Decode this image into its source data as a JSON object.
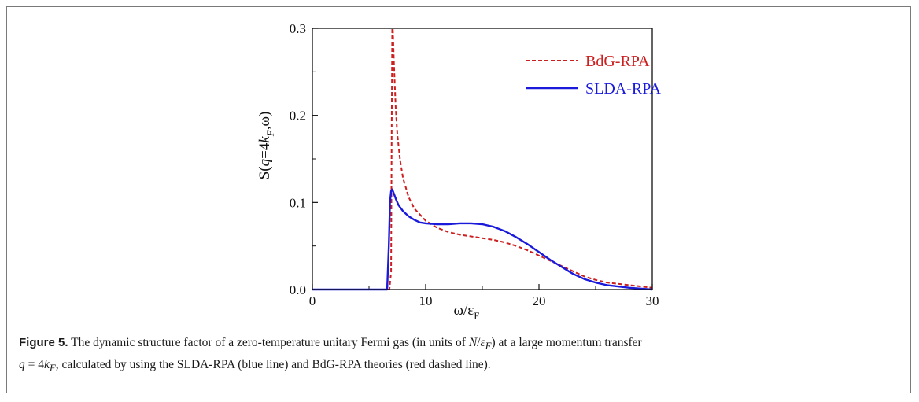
{
  "colors": {
    "bdg": "#cc1f1f",
    "slda": "#1a1adb",
    "axis": "#111111"
  },
  "chart_data": {
    "type": "line",
    "xlabel_main": "ω/ε",
    "xlabel_sub": "F",
    "ylabel_parts": [
      "S(",
      "q",
      "=4",
      "k",
      "F",
      ",ω)"
    ],
    "xlim": [
      0,
      30
    ],
    "ylim": [
      0,
      0.3
    ],
    "x_ticks": [
      0,
      10,
      20,
      30
    ],
    "x_tick_labels": [
      "0",
      "10",
      "20",
      "30"
    ],
    "y_ticks": [
      0.0,
      0.1,
      0.2,
      0.3
    ],
    "y_tick_labels": [
      "0.0",
      "0.1",
      "0.2",
      "0.3"
    ],
    "legend_position": "top-right",
    "series": [
      {
        "name": "BdG-RPA",
        "style": "dashed",
        "color": "#cc1f1f",
        "x": [
          0,
          6.8,
          6.95,
          7.0,
          7.05,
          7.1,
          7.2,
          7.35,
          7.5,
          7.75,
          8.0,
          8.5,
          9.0,
          10.0,
          11.0,
          12.0,
          13.0,
          14.0,
          15.0,
          16.0,
          17.0,
          18.0,
          19.0,
          20.0,
          21.0,
          22.0,
          23.0,
          24.0,
          25.0,
          26.0,
          28.0,
          30.0
        ],
        "y": [
          0.0,
          0.0,
          0.02,
          0.18,
          0.3,
          0.3,
          0.26,
          0.21,
          0.178,
          0.148,
          0.128,
          0.106,
          0.093,
          0.079,
          0.071,
          0.066,
          0.063,
          0.061,
          0.059,
          0.057,
          0.054,
          0.05,
          0.045,
          0.039,
          0.033,
          0.027,
          0.021,
          0.015,
          0.011,
          0.008,
          0.005,
          0.002
        ]
      },
      {
        "name": "SLDA-RPA",
        "style": "solid",
        "color": "#1a1adb",
        "x": [
          0,
          6.6,
          6.75,
          6.85,
          6.95,
          7.05,
          7.2,
          7.4,
          7.6,
          8.0,
          8.5,
          9.0,
          9.5,
          10.0,
          11.0,
          12.0,
          13.0,
          14.0,
          15.0,
          16.0,
          17.0,
          18.0,
          19.0,
          20.0,
          21.0,
          22.0,
          23.0,
          24.0,
          25.0,
          26.0,
          28.0,
          30.0
        ],
        "y": [
          0.0,
          0.0,
          0.05,
          0.1,
          0.113,
          0.115,
          0.11,
          0.103,
          0.097,
          0.09,
          0.084,
          0.08,
          0.077,
          0.076,
          0.075,
          0.075,
          0.076,
          0.076,
          0.075,
          0.072,
          0.067,
          0.06,
          0.052,
          0.043,
          0.034,
          0.026,
          0.018,
          0.012,
          0.008,
          0.005,
          0.002,
          0.0
        ]
      }
    ]
  },
  "caption": {
    "label": "Figure 5.",
    "t1": " The dynamic structure factor of a zero-temperature unitary Fermi gas (in units of ",
    "m1": "N",
    "m2": "/",
    "m3": "ε",
    "m3sub": "F",
    "t2": ") at a large momentum transfer",
    "m4": "q",
    "m5": " = 4",
    "m6": "k",
    "m6sub": "F",
    "t3": ", calculated by using the SLDA-RPA (blue line) and BdG-RPA theories (red dashed line)."
  }
}
